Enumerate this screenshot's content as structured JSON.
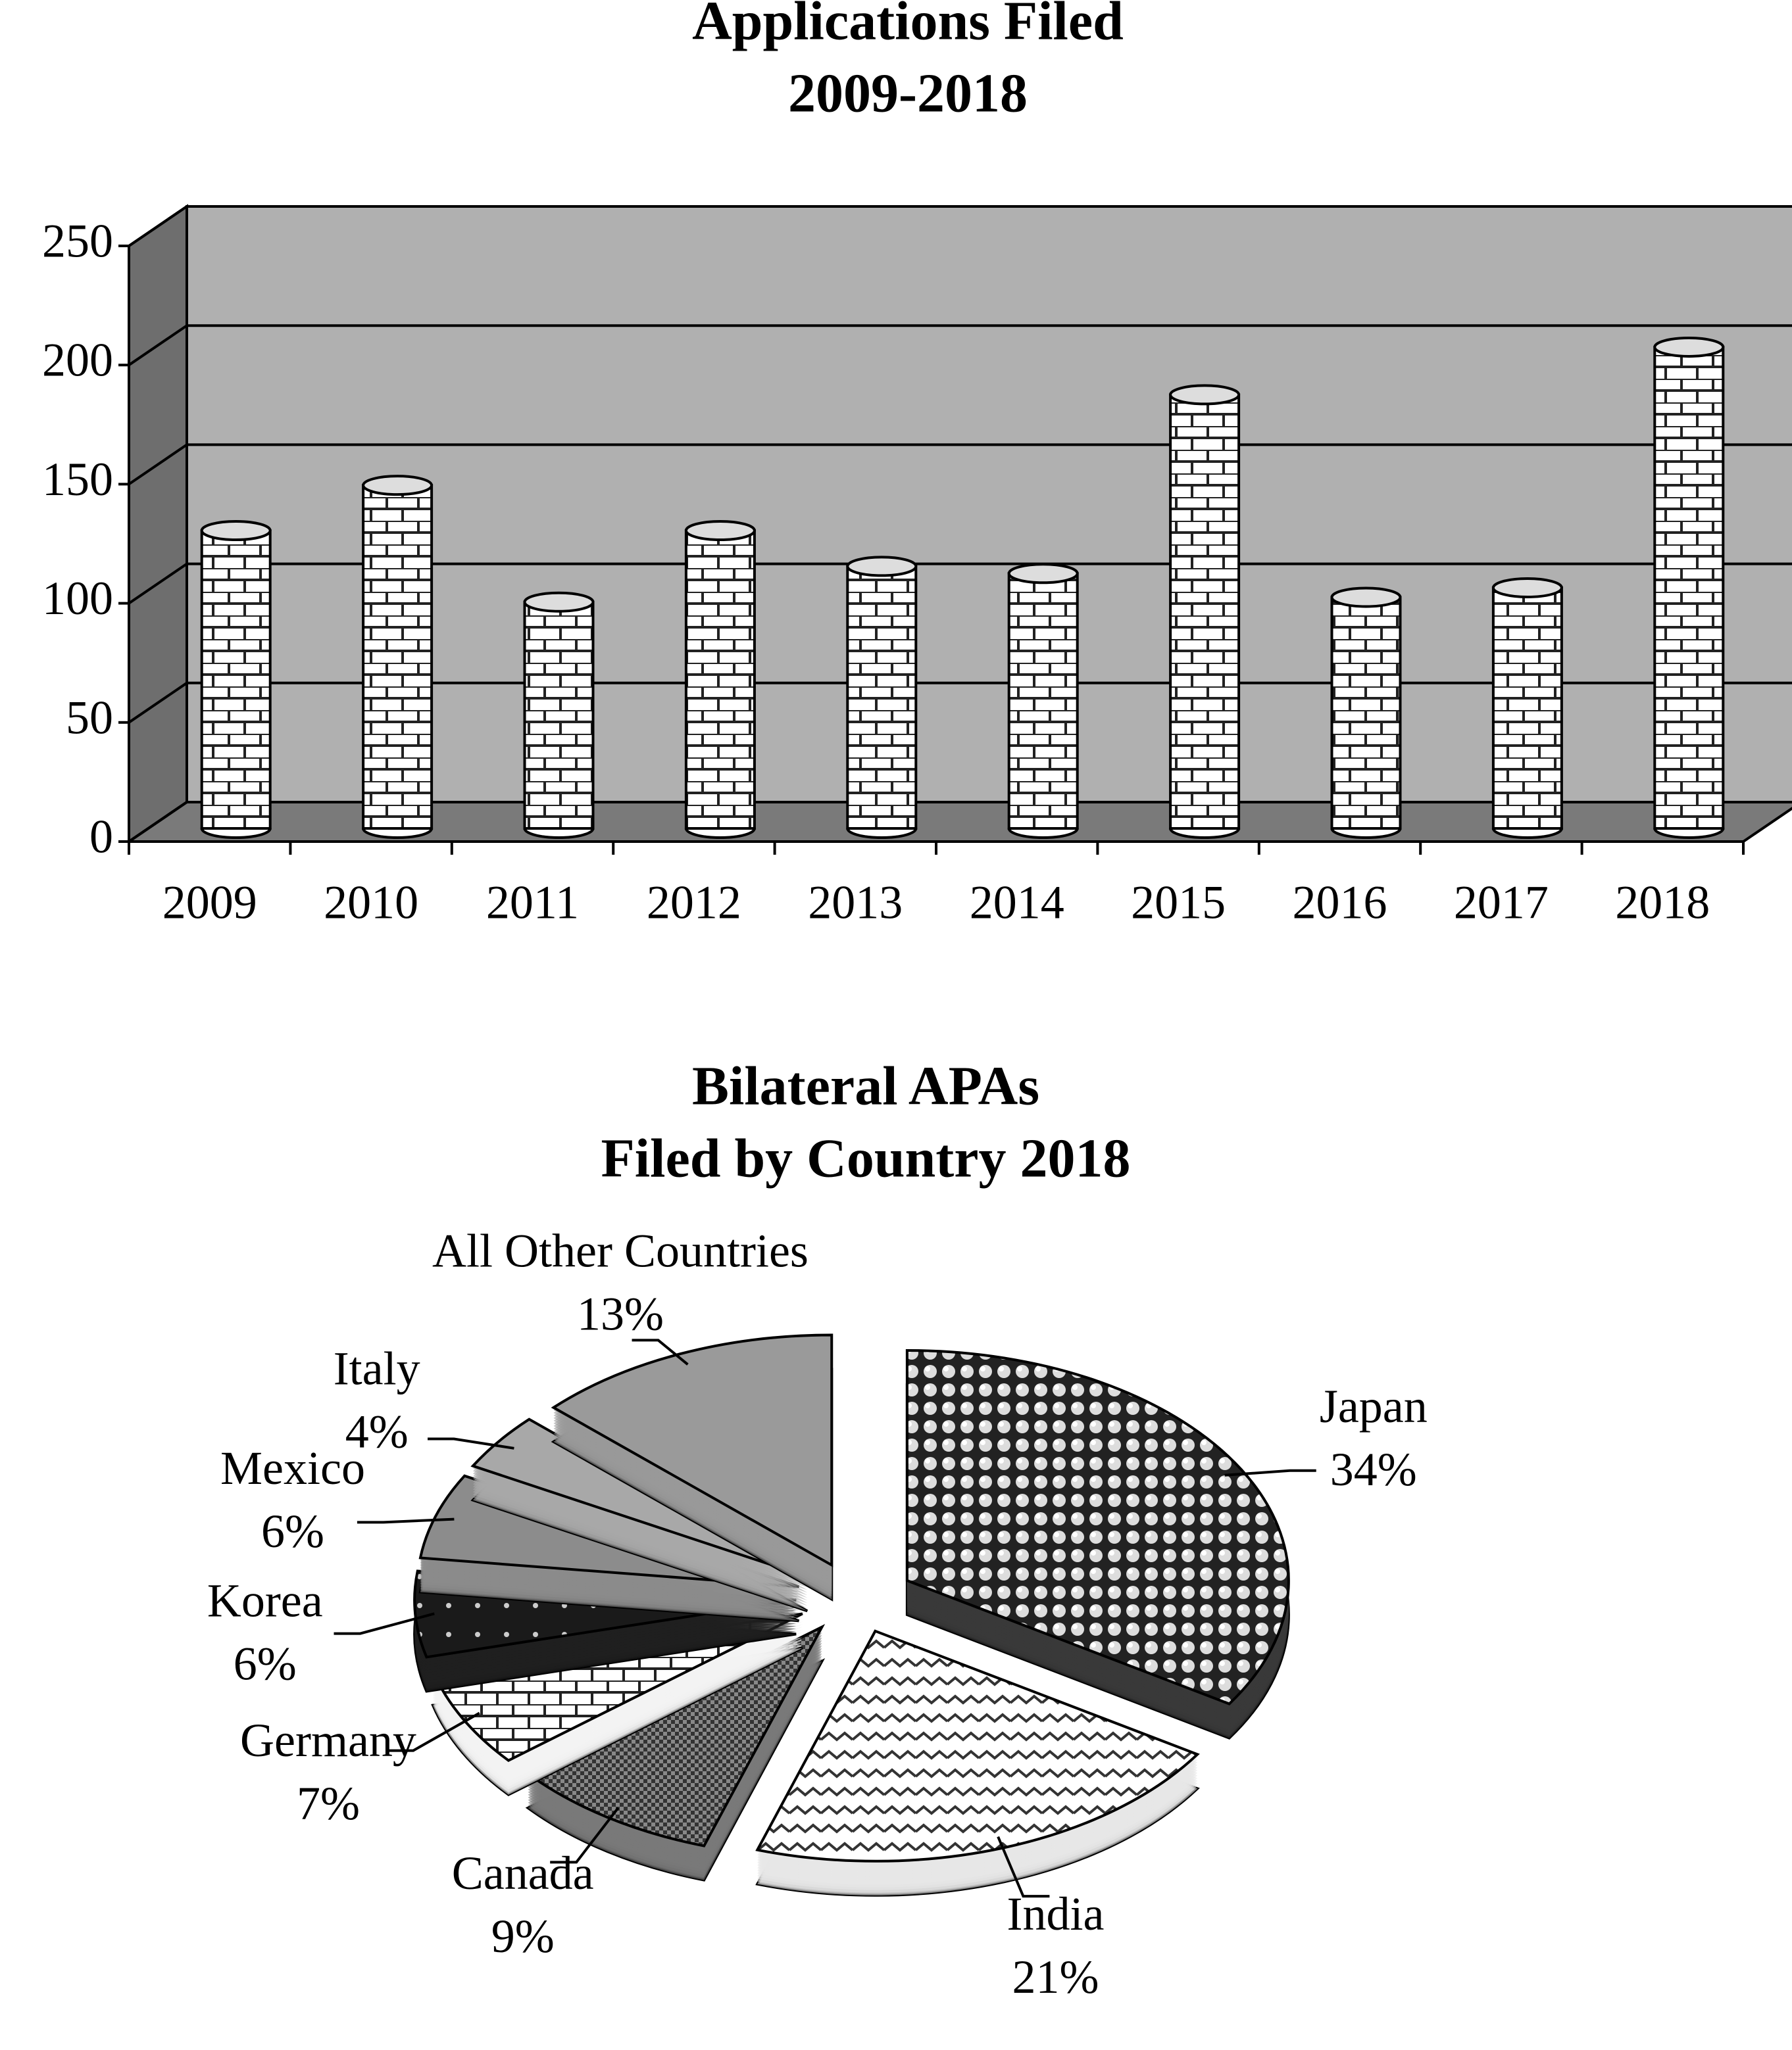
{
  "chart_data": [
    {
      "type": "bar",
      "title": "Applications Filed",
      "subtitle": "2009-2018",
      "categories": [
        "2009",
        "2010",
        "2011",
        "2012",
        "2013",
        "2014",
        "2015",
        "2016",
        "2017",
        "2018"
      ],
      "values": [
        125,
        144,
        95,
        125,
        110,
        107,
        182,
        97,
        101,
        202
      ],
      "color": "#ffffff",
      "ylim": [
        0,
        250
      ],
      "yticks": [
        0,
        50,
        100,
        150,
        200,
        250
      ],
      "grid": true
    },
    {
      "type": "pie",
      "title": "Bilateral APAs",
      "subtitle": "Filed by Country 2018",
      "categories": [
        "Japan",
        "India",
        "Canada",
        "Germany",
        "Korea",
        "Mexico",
        "Italy",
        "All Other Countries"
      ],
      "values": [
        34,
        21,
        9,
        7,
        6,
        6,
        4,
        13
      ],
      "value_labels": [
        "34%",
        "21%",
        "9%",
        "7%",
        "6%",
        "6%",
        "4%",
        "13%"
      ],
      "colors": [
        "#3a3a3a",
        "#e8e8e8",
        "#7a7a7a",
        "#f4f4f4",
        "#202020",
        "#8c8c8c",
        "#a8a8a8",
        "#9a9a9a"
      ]
    }
  ]
}
